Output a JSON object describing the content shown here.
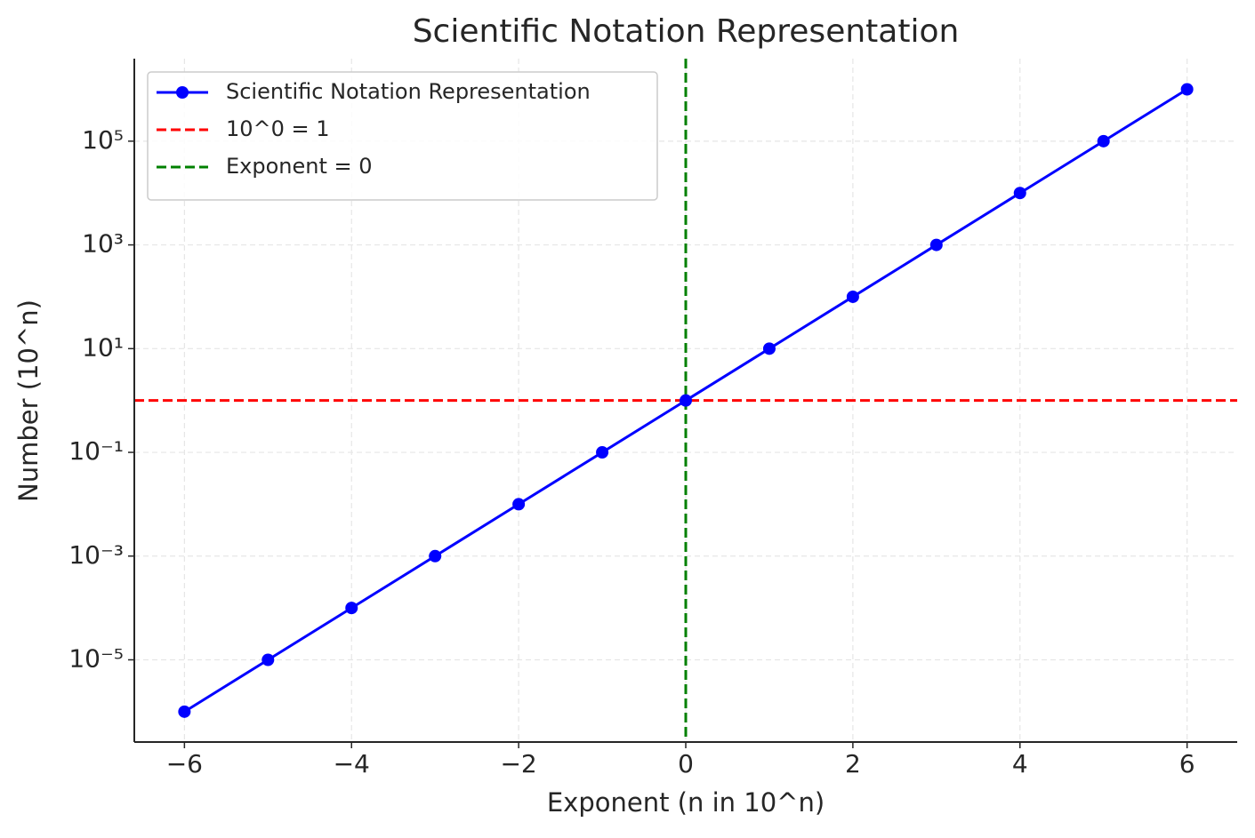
{
  "chart_data": {
    "type": "line",
    "title": "Scientific Notation Representation",
    "x_label": "Exponent (n in 10^n)",
    "y_label": "Number (10^n)",
    "series": [
      {
        "name": "Scientific Notation Representation",
        "color": "#0000ff",
        "x": [
          -6,
          -5,
          -4,
          -3,
          -2,
          -1,
          0,
          1,
          2,
          3,
          4,
          5,
          6
        ],
        "values": [
          1e-06,
          1e-05,
          0.0001,
          0.001,
          0.01,
          0.1,
          1,
          10,
          100,
          1000,
          10000,
          100000,
          1000000
        ]
      }
    ],
    "hlines": [
      {
        "name": "10^0 = 1",
        "value": 1,
        "color": "#ff0000"
      }
    ],
    "vlines": [
      {
        "name": "Exponent = 0",
        "value": 0,
        "color": "#008000"
      }
    ],
    "xlim": [
      -6.6,
      6.6
    ],
    "xticks": [
      {
        "value": -6,
        "label": "−6"
      },
      {
        "value": -4,
        "label": "−4"
      },
      {
        "value": -2,
        "label": "−2"
      },
      0,
      2,
      4,
      6
    ],
    "ylim": [
      2.6e-07,
      3900000.0
    ],
    "y_scale": "log",
    "yticks": [
      {
        "value": 1e-05,
        "label": "10⁻⁵"
      },
      {
        "value": 0.001,
        "label": "10⁻³"
      },
      {
        "value": 0.1,
        "label": "10⁻¹"
      },
      {
        "value": 10,
        "label": "10¹"
      },
      {
        "value": 1000,
        "label": "10³"
      },
      {
        "value": 100000,
        "label": "10⁵"
      }
    ],
    "grid": true,
    "legend": "upper left"
  }
}
